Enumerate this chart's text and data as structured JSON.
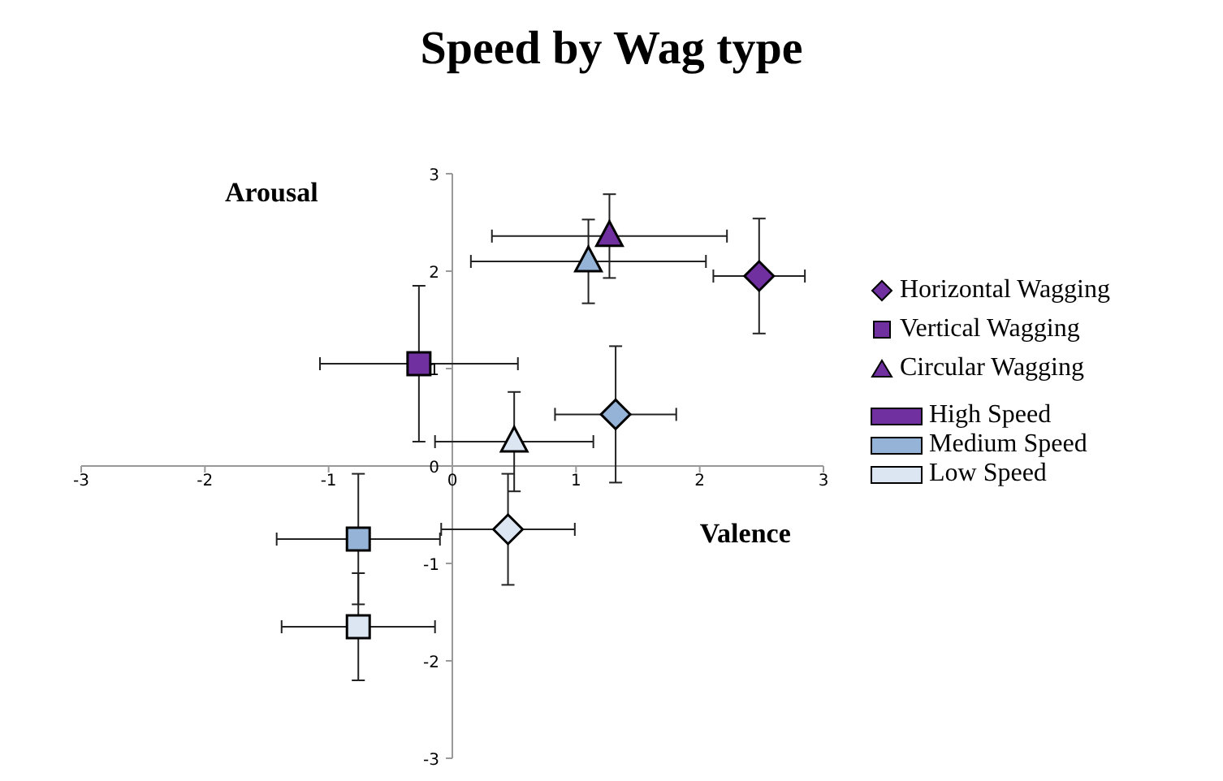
{
  "chart_data": {
    "type": "scatter",
    "title": "Speed by Wag type",
    "xlabel": "Valence",
    "ylabel": "Arousal",
    "xlim": [
      -3,
      3
    ],
    "xticks": [
      -3,
      -2,
      -1,
      0,
      1,
      2,
      3
    ],
    "ylim": [
      -3,
      3
    ],
    "yticks": [
      -3,
      -2,
      -1,
      0,
      1,
      2,
      3
    ],
    "legend": "right",
    "grid": false,
    "annotations": [
      "High Speed",
      "Medium Speed",
      "Low Speed"
    ],
    "series": [
      {
        "name": "Horizontal Wagging",
        "marker": "diamond",
        "colors": [
          "#7030a0",
          "#95b3d7",
          "#dce6f2"
        ],
        "x": [
          2.48,
          1.32,
          0.45
        ],
        "values": [
          1.95,
          0.53,
          -0.65
        ],
        "xerrors": [
          0.37,
          0.49,
          0.54
        ],
        "errors": [
          0.59,
          0.7,
          0.57
        ]
      },
      {
        "name": "Vertical Wagging",
        "marker": "square",
        "colors": [
          "#7030a0",
          "#95b3d7",
          "#dce6f2"
        ],
        "x": [
          -0.27,
          -0.76,
          -0.76
        ],
        "values": [
          1.05,
          -0.75,
          -1.65
        ],
        "xerrors": [
          0.8,
          0.66,
          0.62
        ],
        "errors": [
          0.8,
          0.67,
          0.55
        ]
      },
      {
        "name": "Circular Wagging",
        "marker": "triangle",
        "colors": [
          "#7030a0",
          "#95b3d7",
          "#dce6f2"
        ],
        "x": [
          1.27,
          1.1,
          0.5
        ],
        "values": [
          2.36,
          2.1,
          0.25
        ],
        "xerrors": [
          0.95,
          0.95,
          0.64
        ],
        "errors": [
          0.43,
          0.43,
          0.51
        ]
      }
    ]
  }
}
